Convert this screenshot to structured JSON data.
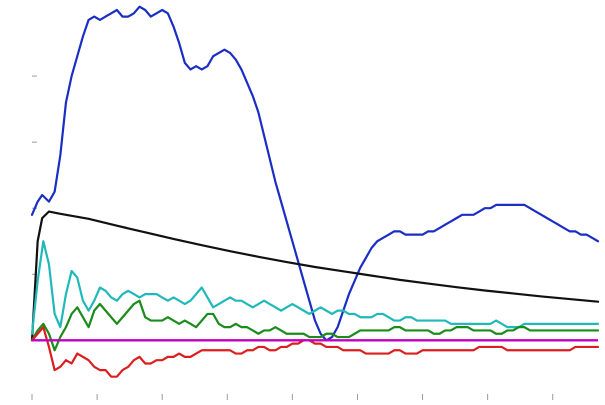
{
  "chart_data": {
    "type": "line",
    "title": "",
    "xlabel": "",
    "ylabel": "",
    "xlim": [
      0,
      100
    ],
    "ylim": [
      -12,
      100
    ],
    "grid": false,
    "legend": "none",
    "x_ticks": [
      0,
      11.5,
      23,
      34.5,
      46,
      57.5,
      69,
      80.5,
      92
    ],
    "y_ticks": [
      20,
      40,
      60,
      80
    ],
    "zero_line": {
      "y": 0,
      "color": "#c000c0"
    },
    "series": [
      {
        "color": "#1a2ec4",
        "x": [
          0,
          1,
          1.8,
          3,
          4,
          5,
          6,
          7,
          8,
          9,
          10,
          11,
          12,
          13,
          14,
          15,
          16,
          17,
          18,
          19,
          20,
          21,
          22,
          23,
          24,
          25,
          26,
          27,
          28,
          29,
          30,
          31,
          32,
          33,
          34,
          35,
          36,
          37,
          38,
          39,
          40,
          41,
          42,
          43,
          44,
          45,
          46,
          47,
          48,
          49,
          50,
          51,
          52,
          53,
          54,
          55,
          56,
          57,
          58,
          59,
          60,
          61,
          62,
          63,
          64,
          65,
          66,
          67,
          68,
          69,
          70,
          71,
          72,
          73,
          74,
          75,
          76,
          77,
          78,
          79,
          80,
          81,
          82,
          83,
          84,
          85,
          86,
          87,
          88,
          89,
          90,
          91,
          92,
          93,
          94,
          95,
          96,
          97,
          98,
          99,
          100
        ],
        "y": [
          38,
          42,
          44,
          42,
          45,
          56,
          72,
          80,
          86,
          92,
          97,
          98,
          97,
          98,
          99,
          100,
          98,
          98,
          99,
          101,
          100,
          98,
          99,
          100,
          99,
          95,
          90,
          84,
          82,
          83,
          82,
          83,
          86,
          87,
          88,
          87,
          85,
          82,
          78,
          74,
          69,
          62,
          55,
          48,
          42,
          36,
          30,
          24,
          18,
          12,
          6,
          2,
          0,
          1,
          4,
          9,
          14,
          18,
          22,
          25,
          28,
          30,
          31,
          32,
          33,
          33,
          32,
          32,
          32,
          32,
          33,
          33,
          34,
          35,
          36,
          37,
          38,
          38,
          38,
          39,
          40,
          40,
          41,
          41,
          41,
          41,
          41,
          41,
          40,
          39,
          38,
          37,
          36,
          35,
          34,
          33,
          33,
          32,
          32,
          31,
          30
        ]
      },
      {
        "color": "#111111",
        "x": [
          0,
          1,
          1.8,
          3,
          5,
          8,
          10,
          15,
          20,
          25,
          30,
          35,
          40,
          45,
          50,
          55,
          60,
          65,
          70,
          75,
          80,
          85,
          90,
          95,
          100
        ],
        "y": [
          0,
          30,
          37,
          39,
          38.3,
          37.4,
          36.8,
          34.7,
          32.7,
          30.7,
          28.8,
          27,
          25.3,
          23.7,
          22.2,
          20.9,
          19.6,
          18.3,
          17.2,
          16.1,
          15.1,
          14.2,
          13.3,
          12.5,
          11.7
        ]
      },
      {
        "color": "#20b8b8",
        "x": [
          0,
          1,
          2,
          3,
          4,
          5,
          6,
          7,
          8,
          9,
          10,
          11,
          12,
          13,
          14,
          15,
          16,
          17,
          18,
          19,
          20,
          21,
          22,
          23,
          24,
          25,
          26,
          27,
          28,
          29,
          30,
          31,
          32,
          33,
          34,
          35,
          36,
          37,
          38,
          39,
          40,
          41,
          42,
          43,
          44,
          45,
          46,
          47,
          48,
          49,
          50,
          51,
          52,
          53,
          54,
          55,
          56,
          57,
          58,
          59,
          60,
          61,
          62,
          63,
          64,
          65,
          66,
          67,
          68,
          69,
          70,
          71,
          72,
          73,
          74,
          75,
          76,
          77,
          78,
          79,
          80,
          81,
          82,
          83,
          84,
          85,
          86,
          87,
          88,
          89,
          90,
          91,
          92,
          93,
          94,
          95,
          96,
          97,
          98,
          99,
          100
        ],
        "y": [
          2,
          18,
          30,
          23,
          8,
          4,
          14,
          21,
          19,
          12,
          9,
          12,
          16,
          15,
          13,
          12,
          14,
          15,
          14,
          13,
          14,
          14,
          14,
          13,
          12,
          13,
          12,
          11,
          12,
          14,
          16,
          13,
          10,
          11,
          12,
          13,
          12,
          12,
          11,
          10,
          11,
          12,
          11,
          10,
          9,
          10,
          11,
          10,
          9,
          8,
          9,
          10,
          9,
          8,
          9,
          9,
          8,
          8,
          7,
          7,
          7,
          8,
          8,
          7,
          6,
          6,
          7,
          7,
          6,
          6,
          6,
          6,
          6,
          6,
          5,
          5,
          5,
          5,
          5,
          5,
          5,
          5,
          6,
          5,
          4,
          4,
          4,
          5,
          5,
          5,
          5,
          5,
          5,
          5,
          5,
          5,
          5,
          5,
          5,
          5,
          5
        ]
      },
      {
        "color": "#1a8c1a",
        "x": [
          0,
          1,
          2,
          3,
          4,
          5,
          6,
          7,
          8,
          9,
          10,
          11,
          12,
          13,
          14,
          15,
          16,
          17,
          18,
          19,
          20,
          21,
          22,
          23,
          24,
          25,
          26,
          27,
          28,
          29,
          30,
          31,
          32,
          33,
          34,
          35,
          36,
          37,
          38,
          39,
          40,
          41,
          42,
          43,
          44,
          45,
          46,
          47,
          48,
          49,
          50,
          51,
          52,
          53,
          54,
          55,
          56,
          57,
          58,
          59,
          60,
          61,
          62,
          63,
          64,
          65,
          66,
          67,
          68,
          69,
          70,
          71,
          72,
          73,
          74,
          75,
          76,
          77,
          78,
          79,
          80,
          81,
          82,
          83,
          84,
          85,
          86,
          87,
          88,
          89,
          90,
          91,
          92,
          93,
          94,
          95,
          96,
          97,
          98,
          99,
          100
        ],
        "y": [
          0,
          3,
          5,
          2,
          -3,
          1,
          4,
          8,
          10,
          7,
          4,
          9,
          11,
          9,
          7,
          5,
          7,
          9,
          11,
          12,
          7,
          6,
          6,
          6,
          7,
          6,
          5,
          6,
          5,
          4,
          6,
          8,
          8,
          5,
          4,
          4,
          5,
          4,
          4,
          3,
          2,
          3,
          3,
          4,
          3,
          2,
          2,
          2,
          2,
          1,
          1,
          1,
          2,
          2,
          1,
          1,
          1,
          2,
          3,
          3,
          3,
          3,
          3,
          3,
          4,
          4,
          3,
          3,
          3,
          3,
          3,
          2,
          2,
          3,
          3,
          4,
          4,
          4,
          3,
          3,
          3,
          3,
          2,
          2,
          3,
          3,
          4,
          4,
          3,
          3,
          3,
          3,
          3,
          3,
          3,
          3,
          3,
          3,
          3,
          3,
          3
        ]
      },
      {
        "color": "#dc1e1e",
        "x": [
          0,
          1,
          2,
          3,
          4,
          5,
          6,
          7,
          8,
          9,
          10,
          11,
          12,
          13,
          14,
          15,
          16,
          17,
          18,
          19,
          20,
          21,
          22,
          23,
          24,
          25,
          26,
          27,
          28,
          29,
          30,
          31,
          32,
          33,
          34,
          35,
          36,
          37,
          38,
          39,
          40,
          41,
          42,
          43,
          44,
          45,
          46,
          47,
          48,
          49,
          50,
          51,
          52,
          53,
          54,
          55,
          56,
          57,
          58,
          59,
          60,
          61,
          62,
          63,
          64,
          65,
          66,
          67,
          68,
          69,
          70,
          71,
          72,
          73,
          74,
          75,
          76,
          77,
          78,
          79,
          80,
          81,
          82,
          83,
          84,
          85,
          86,
          87,
          88,
          89,
          90,
          91,
          92,
          93,
          94,
          95,
          96,
          97,
          98,
          99,
          100
        ],
        "y": [
          0,
          2,
          4,
          -2,
          -9,
          -8,
          -6,
          -7,
          -4,
          -5,
          -6,
          -8,
          -9,
          -9,
          -11,
          -11,
          -9,
          -8,
          -6,
          -5,
          -7,
          -7,
          -6,
          -6,
          -5,
          -5,
          -4,
          -5,
          -5,
          -4,
          -3,
          -3,
          -3,
          -3,
          -3,
          -3,
          -4,
          -4,
          -3,
          -3,
          -2,
          -2,
          -3,
          -3,
          -2,
          -2,
          -1,
          -1,
          0,
          0,
          -1,
          -1,
          -2,
          -2,
          -2,
          -3,
          -3,
          -3,
          -3,
          -4,
          -4,
          -4,
          -4,
          -4,
          -3,
          -3,
          -4,
          -4,
          -4,
          -3,
          -3,
          -3,
          -3,
          -3,
          -3,
          -3,
          -3,
          -3,
          -3,
          -2,
          -2,
          -2,
          -2,
          -2,
          -3,
          -3,
          -3,
          -3,
          -3,
          -3,
          -3,
          -3,
          -3,
          -3,
          -3,
          -3,
          -2,
          -2,
          -2,
          -2,
          -2
        ]
      }
    ]
  }
}
